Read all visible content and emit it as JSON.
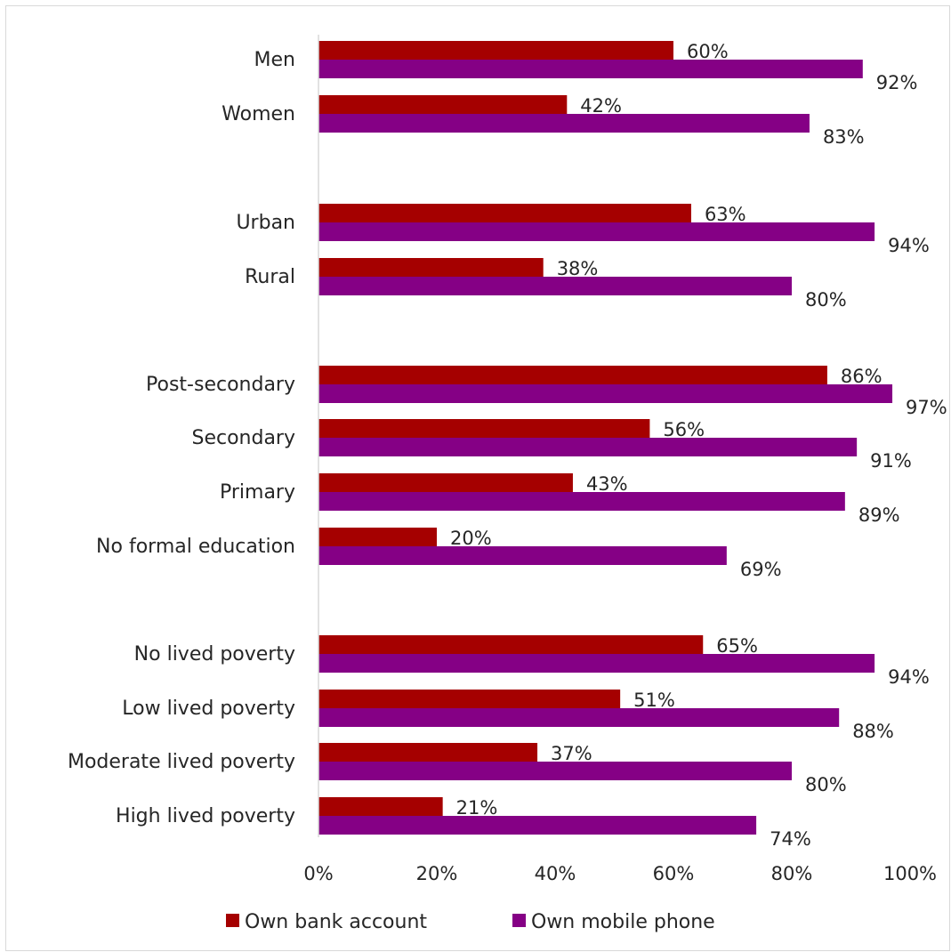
{
  "chart_data": {
    "type": "bar",
    "orientation": "horizontal",
    "categories": [
      "Men",
      "Women",
      "Urban",
      "Rural",
      "Post-secondary",
      "Secondary",
      "Primary",
      "No formal education",
      "No lived poverty",
      "Low lived poverty",
      "Moderate lived poverty",
      "High lived poverty"
    ],
    "series": [
      {
        "name": "Own bank account",
        "color": "#a50000",
        "values": [
          60,
          42,
          63,
          38,
          86,
          56,
          43,
          20,
          65,
          51,
          37,
          21
        ],
        "labels": [
          "60%",
          "42%",
          "63%",
          "38%",
          "86%",
          "56%",
          "43%",
          "20%",
          "65%",
          "51%",
          "37%",
          "21%"
        ]
      },
      {
        "name": "Own mobile phone",
        "color": "#850085",
        "values": [
          92,
          83,
          94,
          80,
          97,
          91,
          89,
          69,
          94,
          88,
          80,
          74
        ],
        "labels": [
          "92%",
          "83%",
          "94%",
          "80%",
          "97%",
          "91%",
          "89%",
          "69%",
          "94%",
          "88%",
          "80%",
          "74%"
        ]
      }
    ],
    "xlim": [
      0,
      100
    ],
    "xticks": [
      "0%",
      "20%",
      "40%",
      "60%",
      "80%",
      "100%"
    ],
    "legend_position": "bottom",
    "grid": false,
    "title": "",
    "xlabel": "",
    "ylabel": ""
  }
}
